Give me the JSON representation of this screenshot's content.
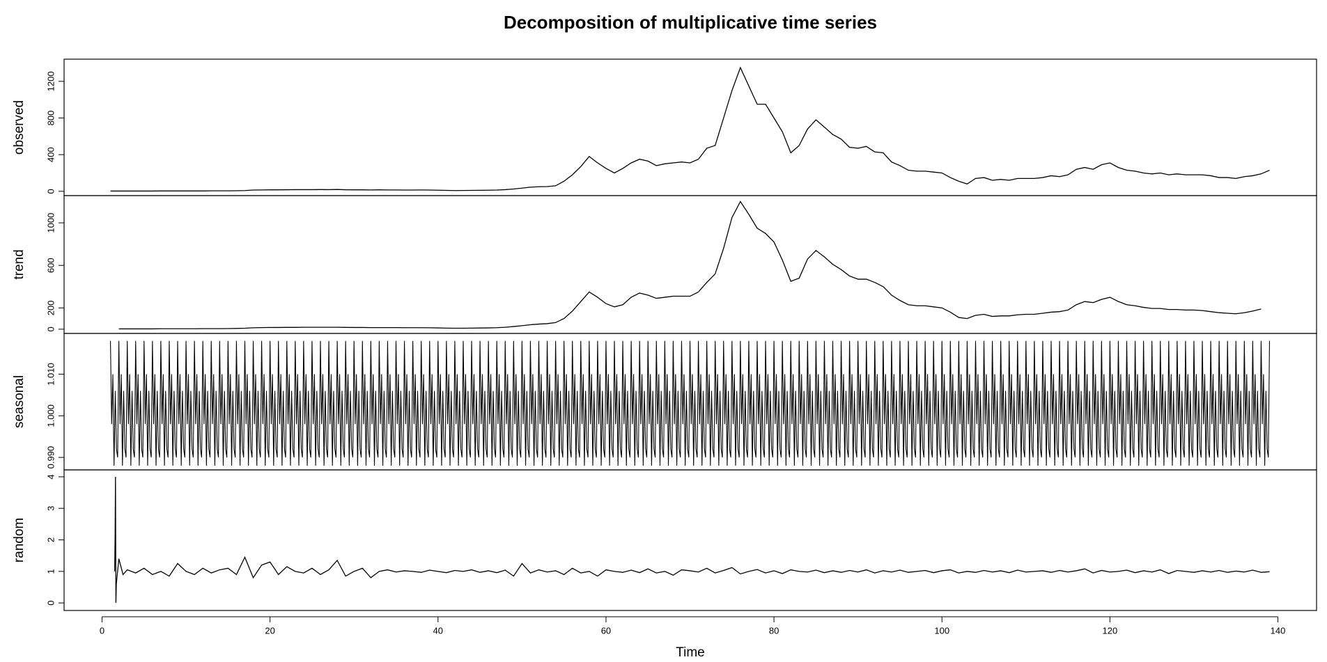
{
  "chart_data": {
    "type": "line",
    "title": "Decomposition of multiplicative time series",
    "xlabel": "Time",
    "xlim": [
      -4.52,
      144.6
    ],
    "xticks": [
      0,
      20,
      40,
      60,
      80,
      100,
      120,
      140
    ],
    "x": [
      1,
      2,
      3,
      4,
      5,
      6,
      7,
      8,
      9,
      10,
      11,
      12,
      13,
      14,
      15,
      16,
      17,
      18,
      19,
      20,
      21,
      22,
      23,
      24,
      25,
      26,
      27,
      28,
      29,
      30,
      31,
      32,
      33,
      34,
      35,
      36,
      37,
      38,
      39,
      40,
      41,
      42,
      43,
      44,
      45,
      46,
      47,
      48,
      49,
      50,
      51,
      52,
      53,
      54,
      55,
      56,
      57,
      58,
      59,
      60,
      61,
      62,
      63,
      64,
      65,
      66,
      67,
      68,
      69,
      70,
      71,
      72,
      73,
      74,
      75,
      76,
      77,
      78,
      79,
      80,
      81,
      82,
      83,
      84,
      85,
      86,
      87,
      88,
      89,
      90,
      91,
      92,
      93,
      94,
      95,
      96,
      97,
      98,
      99,
      100,
      101,
      102,
      103,
      104,
      105,
      106,
      107,
      108,
      109,
      110,
      111,
      112,
      113,
      114,
      115,
      116,
      117,
      118,
      119,
      120,
      121,
      122,
      123,
      124,
      125,
      126,
      127,
      128,
      129,
      130,
      131,
      132,
      133,
      134,
      135,
      136,
      137,
      138,
      139
    ],
    "panels": [
      {
        "ylabel": "observed",
        "ylim": [
          -47,
          1442
        ],
        "yticks": [
          0,
          400,
          800,
          1200
        ],
        "values": [
          3,
          3,
          3,
          3,
          3,
          3,
          4,
          4,
          4,
          4,
          4,
          4,
          5,
          5,
          5,
          6,
          8,
          14,
          15,
          16,
          16,
          17,
          18,
          18,
          18,
          19,
          18,
          20,
          17,
          16,
          16,
          15,
          16,
          15,
          15,
          14,
          14,
          15,
          14,
          12,
          10,
          8,
          9,
          10,
          11,
          12,
          14,
          18,
          25,
          35,
          45,
          50,
          52,
          60,
          110,
          180,
          270,
          380,
          310,
          250,
          200,
          250,
          310,
          350,
          330,
          280,
          300,
          310,
          320,
          310,
          350,
          470,
          500,
          800,
          1100,
          1350,
          1150,
          950,
          950,
          800,
          650,
          420,
          500,
          680,
          780,
          700,
          620,
          570,
          480,
          470,
          490,
          430,
          420,
          320,
          280,
          230,
          220,
          220,
          210,
          200,
          150,
          110,
          80,
          140,
          150,
          120,
          130,
          120,
          140,
          140,
          140,
          150,
          170,
          160,
          180,
          240,
          260,
          240,
          290,
          310,
          260,
          230,
          220,
          200,
          190,
          200,
          180,
          190,
          180,
          180,
          180,
          170,
          150,
          150,
          140,
          160,
          170,
          190,
          230
        ]
      },
      {
        "ylabel": "trend",
        "ylim": [
          -40,
          1256
        ],
        "yticks": [
          0,
          200,
          600,
          1000
        ],
        "values": [
          null,
          3,
          3,
          3,
          3,
          3,
          4,
          4,
          4,
          4,
          4,
          5,
          5,
          5,
          6,
          7,
          9,
          13,
          15,
          16,
          16,
          17,
          17,
          18,
          18,
          18,
          18,
          18,
          17,
          16,
          16,
          15,
          15,
          15,
          15,
          14,
          14,
          14,
          13,
          12,
          10,
          9,
          9,
          10,
          11,
          12,
          14,
          18,
          25,
          33,
          42,
          48,
          52,
          62,
          100,
          170,
          260,
          350,
          300,
          240,
          210,
          230,
          300,
          340,
          320,
          290,
          300,
          310,
          310,
          310,
          350,
          440,
          520,
          760,
          1050,
          1200,
          1080,
          950,
          900,
          820,
          650,
          450,
          480,
          660,
          740,
          680,
          610,
          560,
          500,
          470,
          470,
          440,
          400,
          320,
          270,
          230,
          220,
          220,
          210,
          200,
          160,
          110,
          100,
          130,
          140,
          120,
          125,
          125,
          135,
          140,
          140,
          150,
          160,
          165,
          180,
          230,
          260,
          250,
          280,
          300,
          260,
          230,
          220,
          205,
          195,
          195,
          185,
          185,
          180,
          180,
          175,
          165,
          155,
          150,
          145,
          155,
          170,
          190,
          null
        ]
      },
      {
        "ylabel": "seasonal",
        "ylim": [
          0.987,
          1.0198
        ],
        "yticks": [
          {
            "value": 0.99,
            "label": "0.990"
          },
          {
            "value": 1.0,
            "label": "1.000"
          },
          {
            "value": 1.01,
            "label": "1.010"
          }
        ],
        "frequency": 7,
        "start": 1,
        "end": 139,
        "cycle": [
          1.018,
          0.998,
          1.01,
          0.988,
          1.006,
          0.992,
          0.99
        ]
      },
      {
        "ylabel": "random",
        "ylim": [
          -0.24,
          4.22
        ],
        "yticks": [
          0,
          1,
          2,
          3,
          4
        ],
        "x": [
          1.5,
          1.55,
          1.6,
          1.65,
          1.7,
          2,
          2.5,
          3,
          4,
          5,
          6,
          7,
          8,
          9,
          10,
          11,
          12,
          13,
          14,
          15,
          16,
          17,
          18,
          19,
          20,
          21,
          22,
          23,
          24,
          25,
          26,
          27,
          28,
          29,
          30,
          31,
          32,
          33,
          34,
          35,
          36,
          37,
          38,
          39,
          40,
          41,
          42,
          43,
          44,
          45,
          46,
          47,
          48,
          49,
          50,
          51,
          52,
          53,
          54,
          55,
          56,
          57,
          58,
          59,
          60,
          61,
          62,
          63,
          64,
          65,
          66,
          67,
          68,
          69,
          70,
          71,
          72,
          73,
          74,
          75,
          76,
          77,
          78,
          79,
          80,
          81,
          82,
          83,
          84,
          85,
          86,
          87,
          88,
          89,
          90,
          91,
          92,
          93,
          94,
          95,
          96,
          97,
          98,
          99,
          100,
          101,
          102,
          103,
          104,
          105,
          106,
          107,
          108,
          109,
          110,
          111,
          112,
          113,
          114,
          115,
          116,
          117,
          118,
          119,
          120,
          121,
          122,
          123,
          124,
          125,
          126,
          127,
          128,
          129,
          130,
          131,
          132,
          133,
          134,
          135,
          136,
          137,
          138,
          139
        ],
        "values": [
          1.0,
          2.0,
          4.0,
          0.0,
          0.6,
          1.4,
          0.9,
          1.05,
          0.95,
          1.1,
          0.9,
          1.0,
          0.85,
          1.25,
          1.0,
          0.9,
          1.1,
          0.95,
          1.05,
          1.1,
          0.9,
          1.45,
          0.8,
          1.2,
          1.3,
          0.9,
          1.15,
          1.0,
          0.95,
          1.1,
          0.9,
          1.05,
          1.35,
          0.85,
          1.0,
          1.1,
          0.8,
          1.0,
          1.05,
          0.98,
          1.02,
          1.0,
          0.97,
          1.04,
          1.0,
          0.96,
          1.03,
          1.0,
          1.05,
          0.97,
          1.02,
          0.96,
          1.04,
          0.85,
          1.25,
          0.95,
          1.05,
          0.98,
          1.02,
          0.9,
          1.1,
          0.95,
          1.0,
          0.85,
          1.05,
          1.0,
          0.97,
          1.04,
          0.96,
          1.08,
          0.95,
          1.0,
          0.88,
          1.05,
          1.02,
          0.98,
          1.1,
          0.95,
          1.03,
          1.12,
          0.92,
          1.0,
          1.06,
          0.95,
          1.02,
          0.93,
          1.05,
          1.0,
          0.98,
          1.04,
          0.96,
          1.02,
          0.97,
          1.03,
          0.98,
          1.05,
          0.95,
          1.02,
          0.98,
          1.04,
          0.97,
          1.0,
          1.03,
          0.96,
          1.02,
          1.05,
          0.95,
          1.0,
          0.97,
          1.03,
          0.98,
          1.02,
          0.96,
          1.04,
          0.98,
          1.0,
          1.02,
          0.97,
          1.03,
          0.98,
          1.02,
          1.08,
          0.95,
          1.03,
          0.98,
          1.0,
          1.04,
          0.96,
          1.02,
          0.98,
          1.05,
          0.93,
          1.03,
          1.0,
          0.97,
          1.02,
          0.98,
          1.03,
          0.97,
          1.01,
          0.98,
          1.04,
          0.97,
          0.99
        ]
      }
    ]
  }
}
